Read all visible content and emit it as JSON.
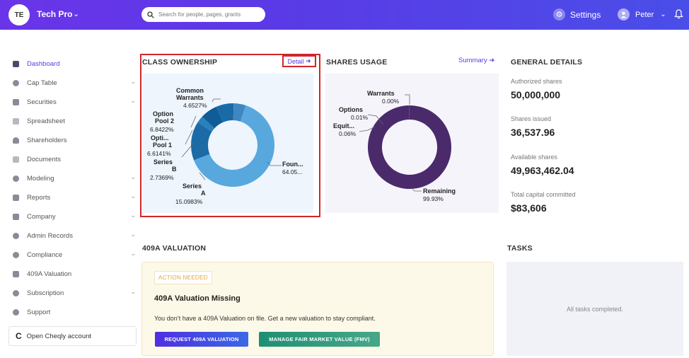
{
  "topbar": {
    "company_initials": "TE",
    "company_name": "Tech Pro",
    "search_placeholder": "Search for people, pages, grants",
    "settings_label": "Settings",
    "user_name": "Peter"
  },
  "sidebar": {
    "items": [
      {
        "label": "Dashboard",
        "icon": "dashboard-icon",
        "active": true
      },
      {
        "label": "Cap Table",
        "icon": "pie-icon",
        "expandable": true
      },
      {
        "label": "Securities",
        "icon": "clipboard-icon",
        "expandable": true
      },
      {
        "label": "Spreadsheet",
        "icon": "grid-icon"
      },
      {
        "label": "Shareholders",
        "icon": "person-icon"
      },
      {
        "label": "Documents",
        "icon": "folder-icon"
      },
      {
        "label": "Modeling",
        "icon": "lightbulb-icon",
        "expandable": true
      },
      {
        "label": "Reports",
        "icon": "report-icon",
        "expandable": true
      },
      {
        "label": "Company",
        "icon": "building-icon",
        "expandable": true
      },
      {
        "label": "Admin Records",
        "icon": "gear-icon",
        "expandable": true
      },
      {
        "label": "Compliance",
        "icon": "shield-icon",
        "expandable": true
      },
      {
        "label": "409A Valuation",
        "icon": "chart-icon"
      },
      {
        "label": "Subscription",
        "icon": "dollar-icon",
        "expandable": true
      },
      {
        "label": "Support",
        "icon": "headset-icon"
      }
    ],
    "cheqly_label": "Open Cheqly account"
  },
  "class_ownership": {
    "title": "CLASS OWNERSHIP",
    "detail_link": "Detail",
    "labels": {
      "common_warrants_1": "Common",
      "common_warrants_2": "Warrants",
      "common_warrants_pct": "4.6527%",
      "option_pool2_1": "Option",
      "option_pool2_2": "Pool 2",
      "option_pool2_pct": "6.8422%",
      "option_pool1_1": "Opti...",
      "option_pool1_2": "Pool 1",
      "option_pool1_pct": "6.6141%",
      "series_b_1": "Series",
      "series_b_2": "B",
      "series_b_pct": "2.7369%",
      "series_a_1": "Series",
      "series_a_2": "A",
      "series_a_pct": "15.0983%",
      "founders_1": "Foun...",
      "founders_pct": "64.05..."
    }
  },
  "shares_usage": {
    "title": "SHARES USAGE",
    "summary_link": "Summary",
    "labels": {
      "warrants": "Warrants",
      "warrants_pct": "0.00%",
      "options": "Options",
      "options_pct": "0.01%",
      "equity": "Equit...",
      "equity_pct": "0.06%",
      "remaining": "Remaining",
      "remaining_pct": "99.93%"
    }
  },
  "chart_data": [
    {
      "type": "pie",
      "title": "CLASS OWNERSHIP",
      "categories": [
        "Founders",
        "Series A",
        "Series B",
        "Option Pool 1",
        "Option Pool 2",
        "Common Warrants"
      ],
      "values": [
        64.05,
        15.0983,
        2.7369,
        6.6141,
        6.8422,
        4.6527
      ],
      "colors": [
        "#58a8de",
        "#1c6aa6",
        "#2a7fbd",
        "#0f5c96",
        "#1a6aa8",
        "#3e87c0"
      ],
      "hole": true
    },
    {
      "type": "pie",
      "title": "SHARES USAGE",
      "categories": [
        "Remaining",
        "Equity",
        "Options",
        "Warrants"
      ],
      "values": [
        99.93,
        0.06,
        0.01,
        0.0
      ],
      "colors": [
        "#4a2a6b",
        "#4a2a6b",
        "#4a2a6b",
        "#4a2a6b"
      ],
      "hole": true
    }
  ],
  "general_details": {
    "title": "GENERAL DETAILS",
    "authorized_label": "Authorized shares",
    "authorized_value": "50,000,000",
    "issued_label": "Shares issued",
    "issued_value": "36,537.96",
    "available_label": "Available shares",
    "available_value": "49,963,462.04",
    "capital_label": "Total capital committed",
    "capital_value": "$83,606"
  },
  "valuation": {
    "title": "409A VALUATION",
    "badge": "ACTION NEEDED",
    "card_title": "409A Valuation Missing",
    "card_text": "You don’t have a 409A Valuation on file. Get a new valuation to stay compliant.",
    "request_button": "REQUEST 409A VALUATION",
    "fmv_button": "MANAGE FAIR MARKET VALUE (FMV)"
  },
  "tasks": {
    "title": "TASKS",
    "empty_text": "All tasks completed."
  }
}
